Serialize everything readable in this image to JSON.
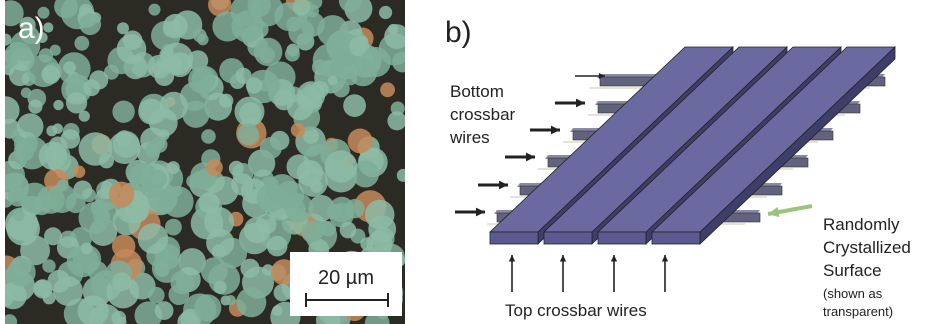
{
  "panel_a": {
    "label": "a)",
    "scale_bar": "20 µm"
  },
  "panel_b": {
    "label": "b)",
    "bottom_label": [
      "Bottom",
      "crossbar",
      "wires"
    ],
    "surface_label": [
      "Randomly",
      "Crystallized",
      "Surface"
    ],
    "surface_note": [
      "(shown as",
      "transparent)"
    ],
    "top_label": "Top crossbar wires"
  }
}
